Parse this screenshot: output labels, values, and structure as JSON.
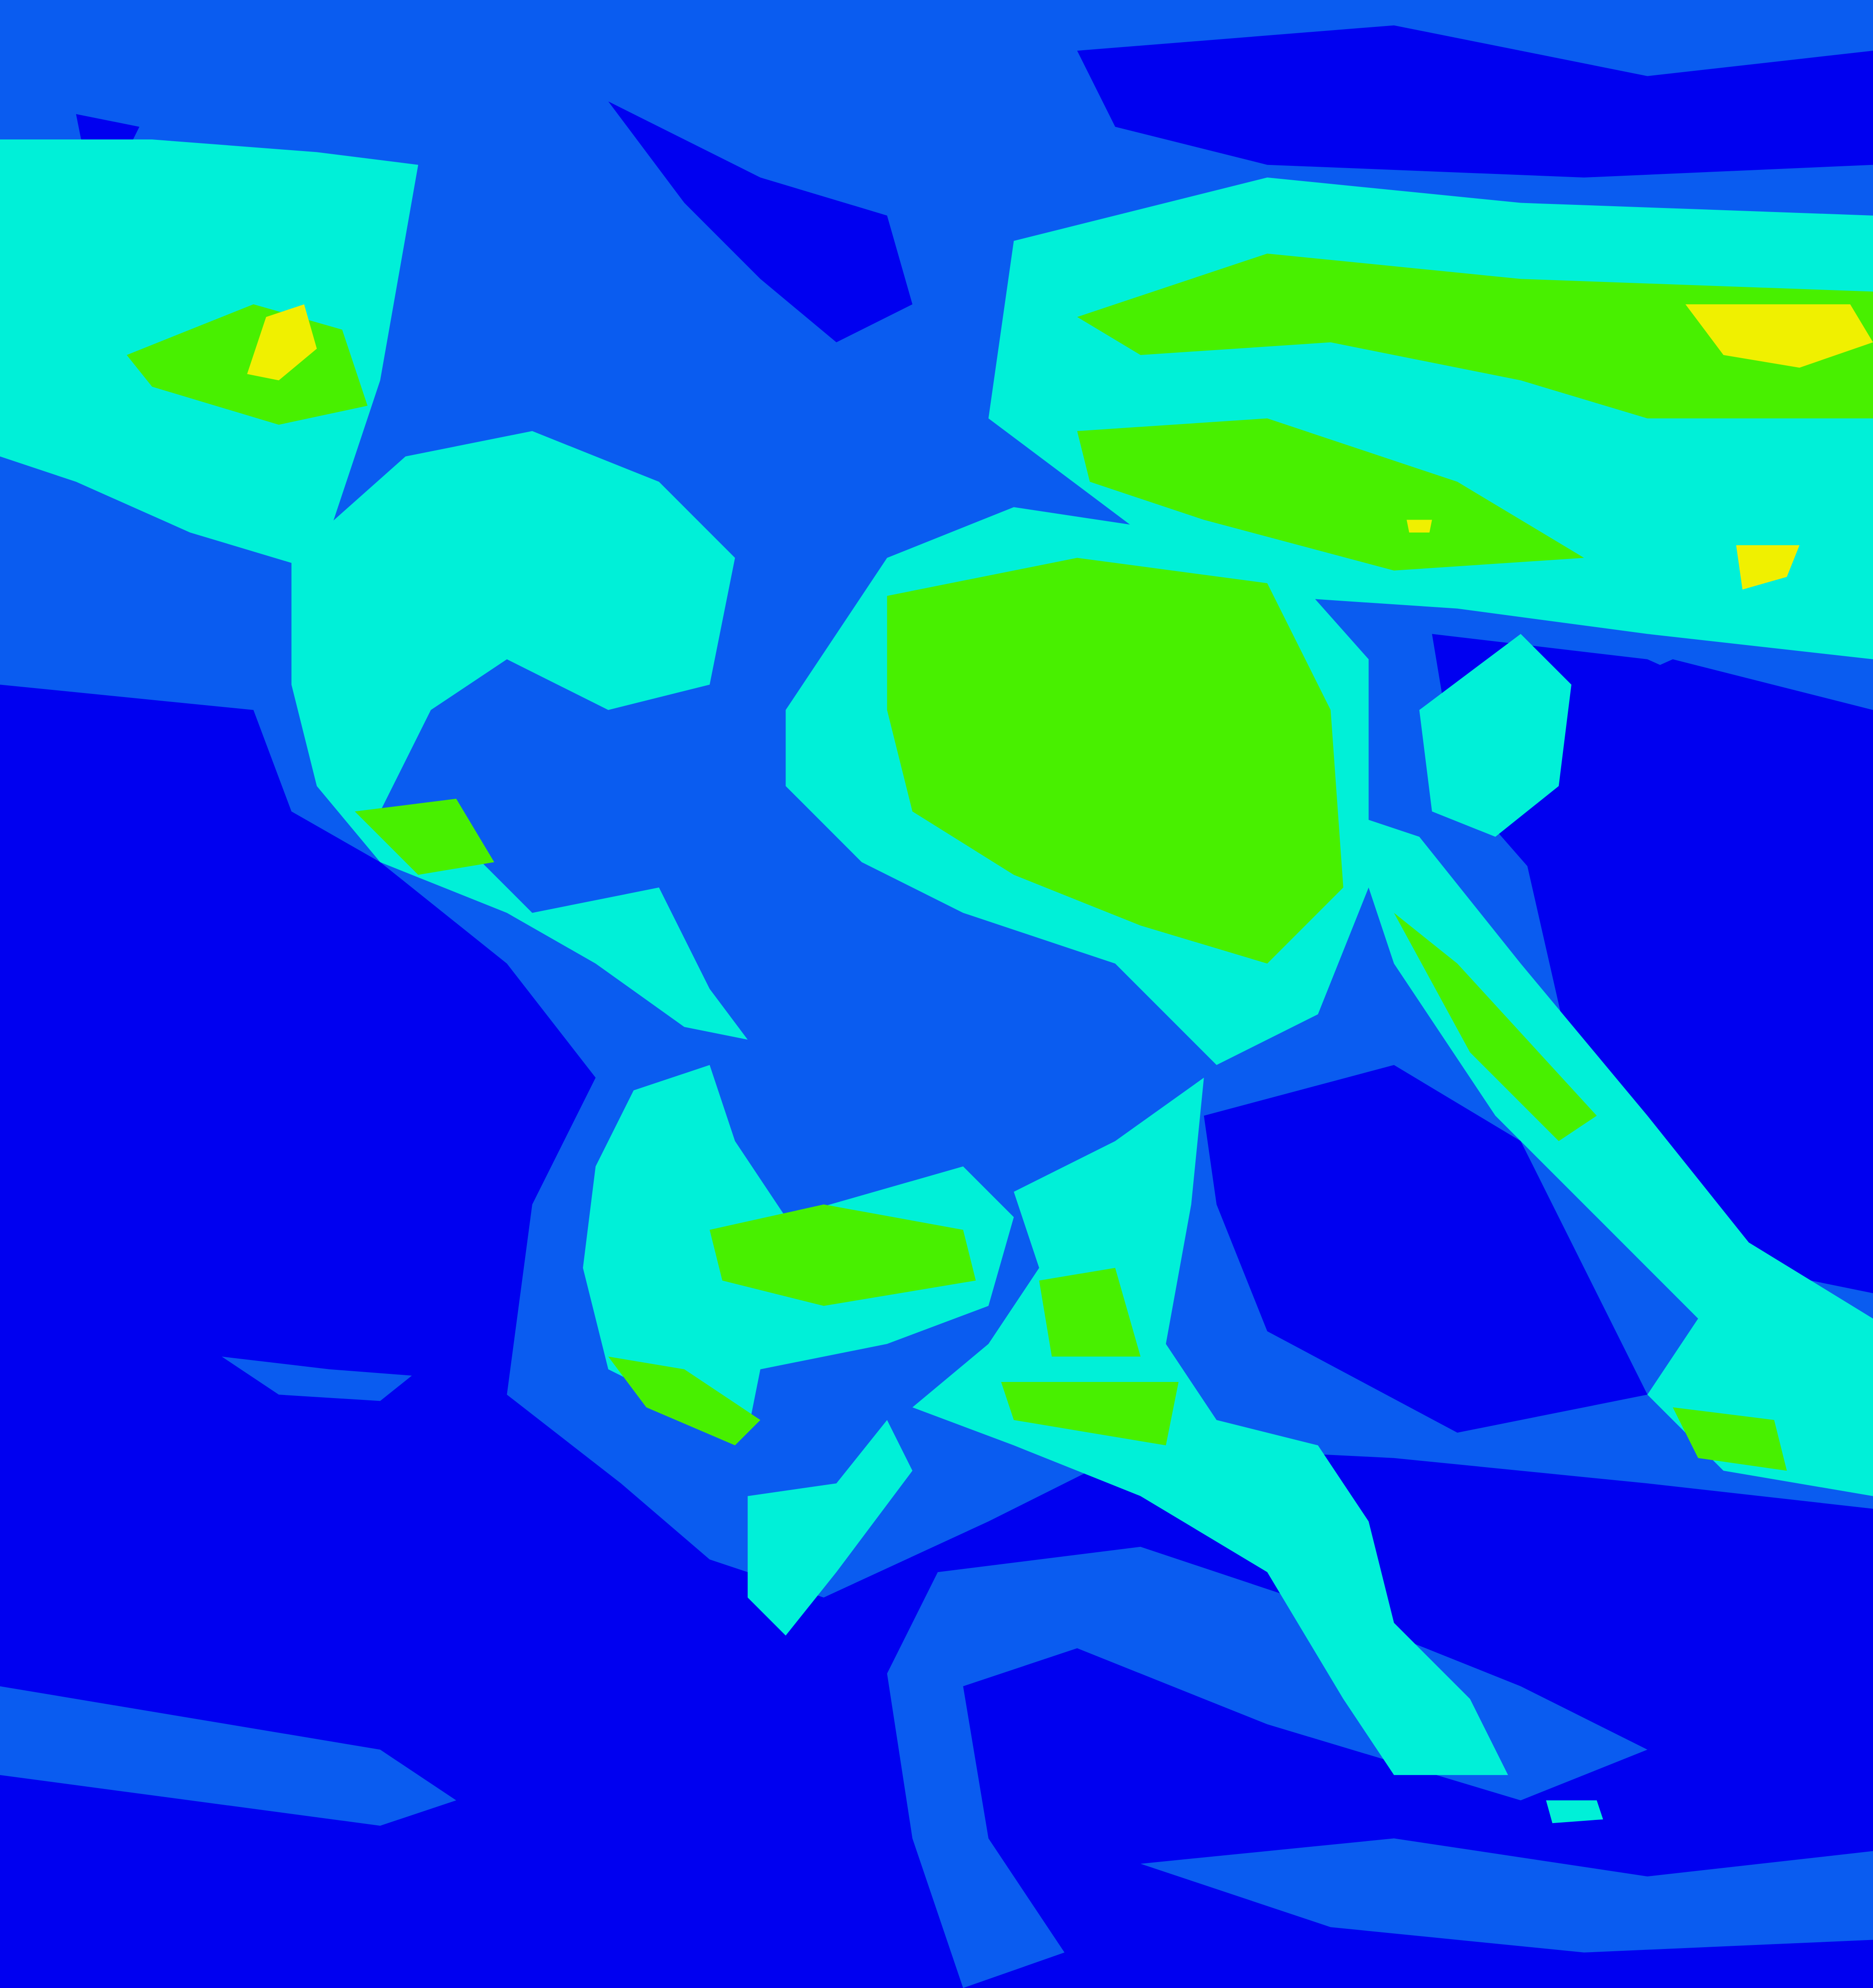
{
  "image": {
    "kind": "false-color satellite imagery",
    "palette": {
      "level_0": "#0000f0",
      "level_1": "#0a5cf0",
      "level_2": "#00f0d8",
      "level_3": "#48f000",
      "level_4": "#f0f000"
    }
  }
}
